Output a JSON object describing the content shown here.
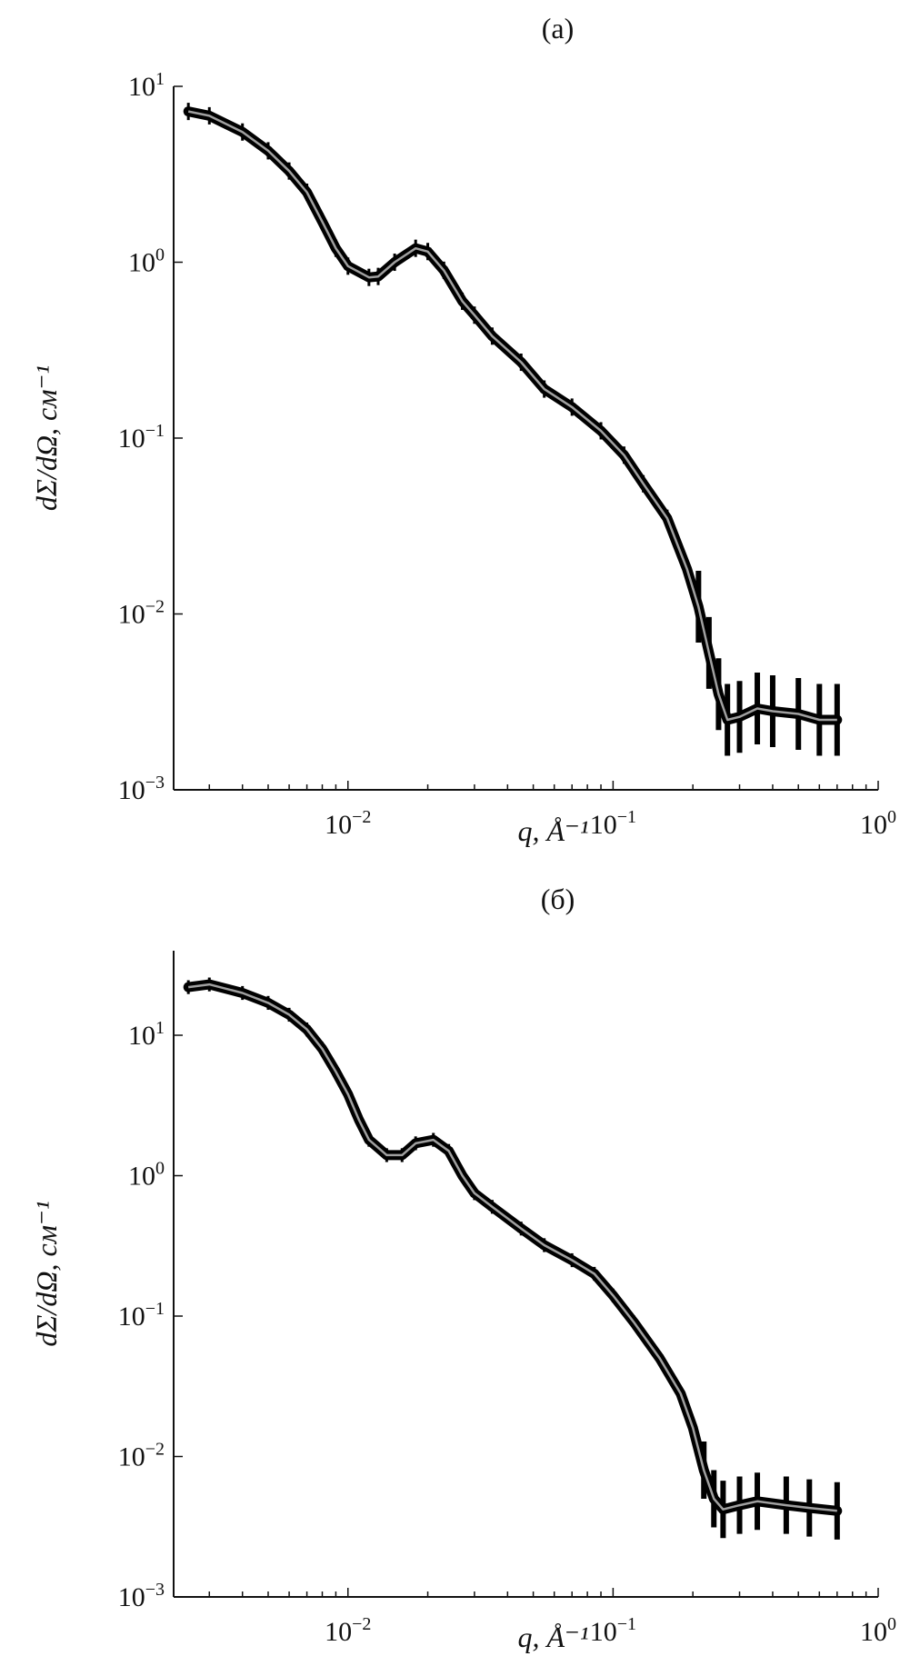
{
  "chart_data": [
    {
      "type": "scatter",
      "panel_label": "(a)",
      "xlabel": "q, Å⁻¹",
      "ylabel": "dΣ/dΩ, см⁻¹",
      "xscale": "log",
      "yscale": "log",
      "xlim": [
        0.0022,
        1
      ],
      "ylim": [
        0.001,
        10
      ],
      "xticks": [
        {
          "base": "10",
          "exp": "−2",
          "value": 0.01
        },
        {
          "base": "10",
          "exp": "−1",
          "value": 0.1
        },
        {
          "base": "10",
          "exp": "0",
          "value": 1
        }
      ],
      "yticks": [
        {
          "base": "10",
          "exp": "−3",
          "value": 0.001
        },
        {
          "base": "10",
          "exp": "−2",
          "value": 0.01
        },
        {
          "base": "10",
          "exp": "−1",
          "value": 0.1
        },
        {
          "base": "10",
          "exp": "0",
          "value": 1
        },
        {
          "base": "10",
          "exp": "1",
          "value": 10
        }
      ],
      "grid": false,
      "colors": {
        "data": "#000000",
        "fit": "#a0a0a0"
      },
      "series": [
        {
          "x": [
            0.0025,
            0.003,
            0.004,
            0.005,
            0.006,
            0.007,
            0.008,
            0.009,
            0.01,
            0.012,
            0.013,
            0.015,
            0.018,
            0.02,
            0.023,
            0.027,
            0.03,
            0.035,
            0.045,
            0.055,
            0.07,
            0.09,
            0.11,
            0.13,
            0.16,
            0.19,
            0.21,
            0.23,
            0.25,
            0.27,
            0.3,
            0.35,
            0.4,
            0.5,
            0.6,
            0.7
          ],
          "y": [
            7.2,
            6.8,
            5.5,
            4.3,
            3.3,
            2.5,
            1.7,
            1.2,
            0.95,
            0.82,
            0.83,
            1.0,
            1.2,
            1.15,
            0.9,
            0.6,
            0.5,
            0.38,
            0.27,
            0.19,
            0.15,
            0.11,
            0.08,
            0.055,
            0.035,
            0.018,
            0.011,
            0.006,
            0.0035,
            0.0025,
            0.0026,
            0.0029,
            0.0028,
            0.0027,
            0.0025,
            0.0025
          ]
        }
      ]
    },
    {
      "type": "scatter",
      "panel_label": "(б)",
      "xlabel": "q, Å⁻¹",
      "ylabel": "dΣ/dΩ, см⁻¹",
      "xscale": "log",
      "yscale": "log",
      "xlim": [
        0.0022,
        1
      ],
      "ylim": [
        0.001,
        40
      ],
      "xticks": [
        {
          "base": "10",
          "exp": "−2",
          "value": 0.01
        },
        {
          "base": "10",
          "exp": "−1",
          "value": 0.1
        },
        {
          "base": "10",
          "exp": "0",
          "value": 1
        }
      ],
      "yticks": [
        {
          "base": "10",
          "exp": "−3",
          "value": 0.001
        },
        {
          "base": "10",
          "exp": "−2",
          "value": 0.01
        },
        {
          "base": "10",
          "exp": "−1",
          "value": 0.1
        },
        {
          "base": "10",
          "exp": "0",
          "value": 1
        },
        {
          "base": "10",
          "exp": "1",
          "value": 10
        }
      ],
      "grid": false,
      "colors": {
        "data": "#000000",
        "fit": "#a0a0a0"
      },
      "series": [
        {
          "x": [
            0.0025,
            0.003,
            0.004,
            0.005,
            0.006,
            0.007,
            0.008,
            0.009,
            0.01,
            0.011,
            0.012,
            0.014,
            0.016,
            0.018,
            0.021,
            0.024,
            0.027,
            0.03,
            0.035,
            0.045,
            0.055,
            0.07,
            0.085,
            0.1,
            0.12,
            0.15,
            0.18,
            0.2,
            0.22,
            0.24,
            0.26,
            0.3,
            0.35,
            0.45,
            0.55,
            0.7
          ],
          "y": [
            22,
            23,
            20,
            17,
            14,
            11,
            8,
            5.5,
            3.8,
            2.5,
            1.8,
            1.4,
            1.4,
            1.7,
            1.8,
            1.5,
            1.0,
            0.75,
            0.6,
            0.42,
            0.32,
            0.25,
            0.2,
            0.14,
            0.09,
            0.05,
            0.028,
            0.016,
            0.008,
            0.005,
            0.0042,
            0.0045,
            0.0048,
            0.0045,
            0.0043,
            0.0041
          ]
        }
      ]
    }
  ]
}
